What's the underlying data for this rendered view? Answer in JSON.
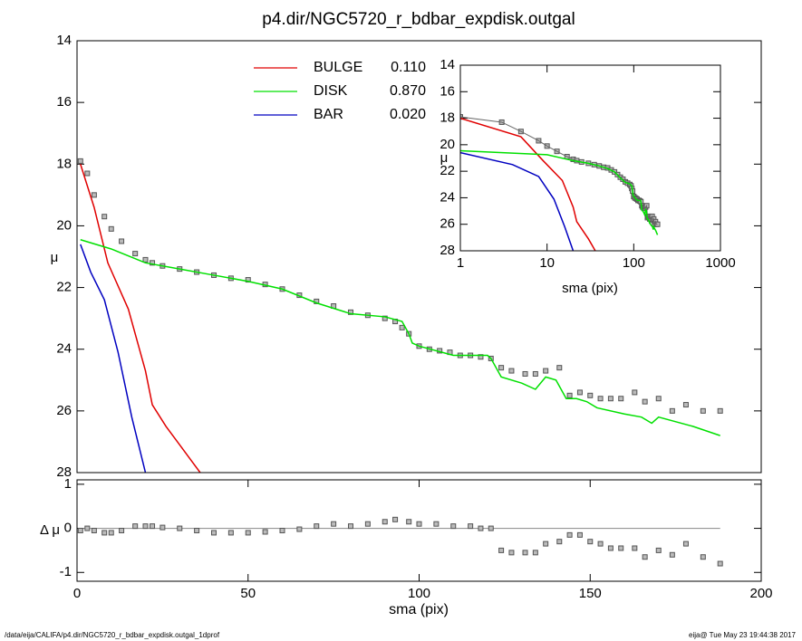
{
  "chart_data": [
    {
      "type": "line",
      "title": "p4.dir/NGC5720_r_bdbar_expdisk.outgal",
      "ylabel": "μ",
      "xlim": [
        0,
        200
      ],
      "ylim": [
        28,
        14
      ],
      "yticks": [
        14,
        16,
        18,
        20,
        22,
        24,
        26,
        28
      ],
      "series": [
        {
          "color": "#555555",
          "marker": "square",
          "x": [
            1,
            3,
            5,
            8,
            10,
            13,
            17,
            20,
            22,
            25,
            30,
            35,
            40,
            45,
            50,
            55,
            60,
            65,
            70,
            75,
            80,
            85,
            90,
            93,
            95,
            97,
            100,
            103,
            106,
            109,
            112,
            115,
            118,
            121,
            124,
            127,
            131,
            134,
            137,
            141,
            144,
            147,
            150,
            153,
            156,
            159,
            163,
            166,
            170,
            174,
            178,
            183,
            188
          ],
          "values": [
            17.9,
            18.3,
            19.0,
            19.7,
            20.1,
            20.5,
            20.9,
            21.1,
            21.2,
            21.3,
            21.4,
            21.5,
            21.6,
            21.7,
            21.75,
            21.9,
            22.05,
            22.25,
            22.45,
            22.6,
            22.8,
            22.9,
            23.0,
            23.1,
            23.3,
            23.5,
            23.9,
            24.0,
            24.05,
            24.1,
            24.2,
            24.2,
            24.25,
            24.3,
            24.6,
            24.7,
            24.8,
            24.8,
            24.7,
            24.6,
            25.5,
            25.4,
            25.5,
            25.6,
            25.6,
            25.6,
            25.4,
            25.7,
            25.6,
            26.0,
            25.8,
            26.0,
            26.0
          ]
        },
        {
          "name": "BULGE",
          "color": "#e00000",
          "fraction": 0.11,
          "fraction_label": "0.110",
          "x": [
            1,
            5,
            9,
            15,
            20,
            22,
            26,
            30,
            36
          ],
          "values": [
            18.0,
            19.4,
            21.2,
            22.7,
            24.7,
            25.8,
            26.5,
            27.1,
            28.0
          ]
        },
        {
          "name": "DISK",
          "color": "#00e000",
          "fraction": 0.87,
          "fraction_label": "0.870",
          "x": [
            1,
            10,
            20,
            30,
            40,
            50,
            60,
            70,
            80,
            90,
            95,
            97,
            98,
            100,
            110,
            120,
            121,
            124,
            130,
            134,
            137,
            140,
            143,
            146,
            149,
            152,
            160,
            165,
            168,
            170,
            180,
            188
          ],
          "values": [
            20.45,
            20.75,
            21.2,
            21.4,
            21.6,
            21.8,
            22.05,
            22.5,
            22.85,
            22.95,
            23.1,
            23.5,
            23.8,
            23.9,
            24.2,
            24.2,
            24.3,
            24.9,
            25.1,
            25.3,
            24.9,
            25.0,
            25.6,
            25.6,
            25.7,
            25.9,
            26.1,
            26.2,
            26.4,
            26.2,
            26.5,
            26.8
          ]
        },
        {
          "name": "BAR",
          "color": "#0000c0",
          "fraction": 0.02,
          "fraction_label": "0.020",
          "x": [
            1,
            4,
            8,
            12,
            16,
            20
          ],
          "values": [
            20.6,
            21.5,
            22.4,
            24.1,
            26.2,
            28.0
          ]
        }
      ]
    },
    {
      "type": "scatter",
      "ylabel": "Δ μ",
      "xlabel": "sma (pix)",
      "xlim": [
        0,
        200
      ],
      "xticks": [
        0,
        50,
        100,
        150,
        200
      ],
      "ylim": [
        -1.2,
        1.1
      ],
      "yticks": [
        1,
        0,
        -1
      ],
      "ref_line": 0,
      "series": [
        {
          "color": "#555555",
          "x": [
            1,
            3,
            5,
            8,
            10,
            13,
            17,
            20,
            22,
            25,
            30,
            35,
            40,
            45,
            50,
            55,
            60,
            65,
            70,
            75,
            80,
            85,
            90,
            93,
            97,
            100,
            105,
            110,
            115,
            118,
            121,
            124,
            127,
            131,
            134,
            137,
            141,
            144,
            147,
            150,
            153,
            156,
            159,
            163,
            166,
            170,
            174,
            178,
            183,
            188
          ],
          "values": [
            -0.05,
            0,
            -0.05,
            -0.1,
            -0.1,
            -0.05,
            0.05,
            0.05,
            0.05,
            0.02,
            0,
            -0.05,
            -0.1,
            -0.1,
            -0.1,
            -0.08,
            -0.05,
            -0.02,
            0.05,
            0.1,
            0.05,
            0.1,
            0.15,
            0.2,
            0.15,
            0.1,
            0.1,
            0.05,
            0.05,
            0,
            0,
            -0.5,
            -0.55,
            -0.55,
            -0.55,
            -0.35,
            -0.3,
            -0.15,
            -0.15,
            -0.3,
            -0.35,
            -0.45,
            -0.45,
            -0.45,
            -0.65,
            -0.5,
            -0.6,
            -0.35,
            -0.65,
            -0.8
          ]
        }
      ]
    },
    {
      "type": "line",
      "xscale": "log",
      "xlabel": "sma (pix)",
      "ylabel": "μ",
      "xlim": [
        1,
        1000
      ],
      "xticks": [
        1,
        10,
        100,
        1000
      ],
      "ylim": [
        28,
        14
      ],
      "yticks": [
        14,
        16,
        18,
        20,
        22,
        24,
        26,
        28
      ]
    }
  ],
  "footer": {
    "left": "/data/eija/CALIFA/p4.dir/NGC5720_r_bdbar_expdisk.outgal_1dprof",
    "right": "eija@  Tue May 23 19:44:38 2017"
  }
}
